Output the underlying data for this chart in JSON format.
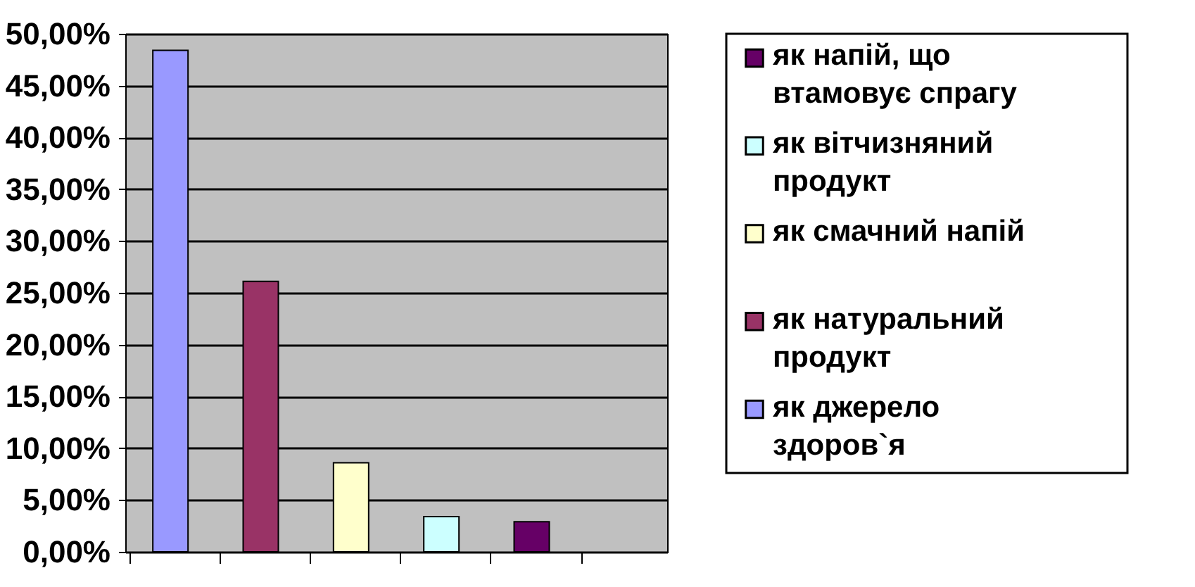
{
  "chart_data": {
    "type": "bar",
    "categories": [
      null,
      null,
      null,
      null,
      null,
      null
    ],
    "series": [
      {
        "name": "як джерело здоров`я",
        "color": "#9999ff",
        "values": [
          48.4,
          null,
          null,
          null,
          null,
          null
        ]
      },
      {
        "name": "як натуральний продукт",
        "color": "#993366",
        "values": [
          null,
          26.1,
          null,
          null,
          null,
          null
        ]
      },
      {
        "name": "як смачний напій",
        "color": "#ffffcc",
        "values": [
          null,
          null,
          8.6,
          null,
          null,
          null
        ]
      },
      {
        "name": "як вітчизняний продукт",
        "color": "#ccffff",
        "values": [
          null,
          null,
          null,
          3.4,
          null,
          null
        ]
      },
      {
        "name": "як напій, що втамовує спрагу",
        "color": "#660066",
        "values": [
          null,
          null,
          null,
          null,
          2.9,
          null
        ]
      }
    ],
    "ylim": [
      0,
      50
    ],
    "yticks": [
      {
        "value": 0,
        "label": "0,00%"
      },
      {
        "value": 5,
        "label": "5,00%"
      },
      {
        "value": 10,
        "label": "10,00%"
      },
      {
        "value": 15,
        "label": "15,00%"
      },
      {
        "value": 20,
        "label": "20,00%"
      },
      {
        "value": 25,
        "label": "25,00%"
      },
      {
        "value": 30,
        "label": "30,00%"
      },
      {
        "value": 35,
        "label": "35,00%"
      },
      {
        "value": 40,
        "label": "40,00%"
      },
      {
        "value": 45,
        "label": "45,00%"
      },
      {
        "value": 50,
        "label": "50,00%"
      }
    ],
    "grid": "y",
    "legend": "right"
  }
}
